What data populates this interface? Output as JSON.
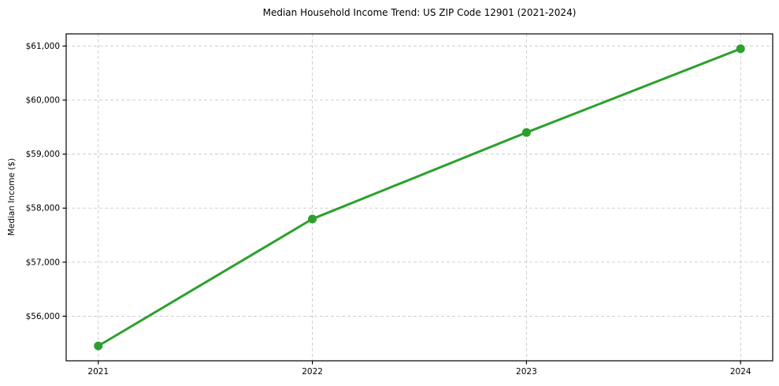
{
  "chart_data": {
    "type": "line",
    "title": "Median Household Income Trend: US ZIP Code 12901 (2021-2024)",
    "xlabel": "",
    "ylabel": "Median Income ($)",
    "x": [
      2021,
      2022,
      2023,
      2024
    ],
    "series": [
      {
        "name": "Median Household Income",
        "values": [
          55450,
          57800,
          59400,
          60950
        ]
      }
    ],
    "xtick_labels": [
      "2021",
      "2022",
      "2023",
      "2024"
    ],
    "ytick_values": [
      56000,
      57000,
      58000,
      59000,
      60000,
      61000
    ],
    "ytick_labels": [
      "$56,000",
      "$57,000",
      "$58,000",
      "$59,000",
      "$60,000",
      "$61,000"
    ],
    "xlim": [
      2020.85,
      2024.15
    ],
    "ylim": [
      55175,
      61225
    ],
    "grid": true,
    "legend": "none",
    "line_color": "#2ca02c",
    "marker": "circle",
    "grid_color": "#c9c9c9",
    "axis_color": "#000000",
    "tick_label_color": "#000000",
    "background": "#ffffff"
  }
}
